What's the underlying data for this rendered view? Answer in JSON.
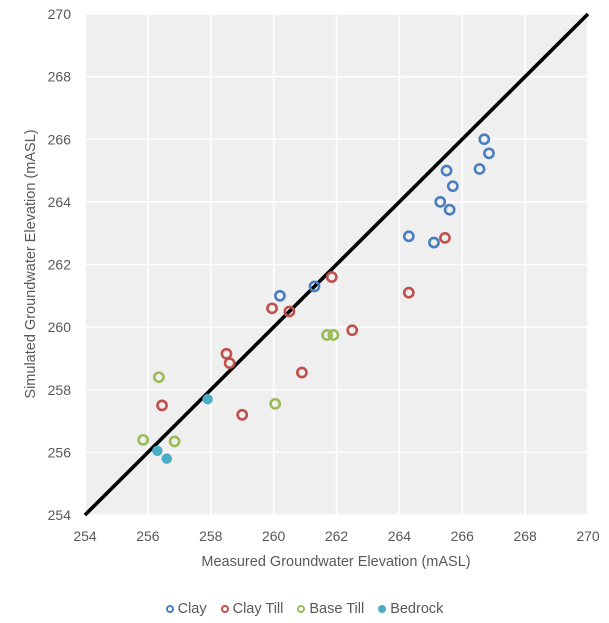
{
  "chart_data": {
    "type": "scatter",
    "title": "",
    "xlabel": "Measured Groundwater Elevation (mASL)",
    "ylabel": "Simulated Groundwater Elevation (mASL)",
    "xlim": [
      254,
      270
    ],
    "ylim": [
      254,
      270
    ],
    "x_ticks": [
      "254",
      "256",
      "258",
      "260",
      "262",
      "264",
      "266",
      "268",
      "270"
    ],
    "y_ticks": [
      "254",
      "256",
      "258",
      "260",
      "262",
      "264",
      "266",
      "268",
      "270"
    ],
    "grid": true,
    "legend_position": "bottom",
    "reference_line": {
      "from": [
        254,
        254
      ],
      "to": [
        270,
        270
      ],
      "color": "#000000"
    },
    "series": [
      {
        "name": "Clay",
        "color": "#4a7ec0",
        "marker": "hollow-circle",
        "points": [
          [
            260.2,
            261.0
          ],
          [
            261.3,
            261.3
          ],
          [
            264.3,
            262.9
          ],
          [
            265.1,
            262.7
          ],
          [
            265.3,
            264.0
          ],
          [
            265.6,
            263.75
          ],
          [
            265.7,
            264.5
          ],
          [
            265.5,
            265.0
          ],
          [
            266.55,
            265.05
          ],
          [
            266.7,
            266.0
          ],
          [
            266.85,
            265.55
          ]
        ]
      },
      {
        "name": "Clay Till",
        "color": "#c0504d",
        "marker": "hollow-circle",
        "points": [
          [
            256.45,
            257.5
          ],
          [
            258.5,
            259.15
          ],
          [
            258.6,
            258.85
          ],
          [
            259.0,
            257.2
          ],
          [
            259.95,
            260.6
          ],
          [
            260.5,
            260.5
          ],
          [
            260.9,
            258.55
          ],
          [
            261.85,
            261.6
          ],
          [
            262.5,
            259.9
          ],
          [
            264.3,
            261.1
          ],
          [
            265.45,
            262.85
          ]
        ]
      },
      {
        "name": "Base Till",
        "color": "#9bbb59",
        "marker": "hollow-circle",
        "points": [
          [
            255.85,
            256.4
          ],
          [
            256.35,
            258.4
          ],
          [
            256.85,
            256.35
          ],
          [
            260.05,
            257.55
          ],
          [
            261.7,
            259.75
          ],
          [
            261.9,
            259.75
          ]
        ]
      },
      {
        "name": "Bedrock",
        "color": "#4bacc6",
        "marker": "filled-circle",
        "points": [
          [
            256.3,
            256.05
          ],
          [
            256.6,
            255.8
          ],
          [
            257.9,
            257.7
          ]
        ]
      }
    ]
  }
}
